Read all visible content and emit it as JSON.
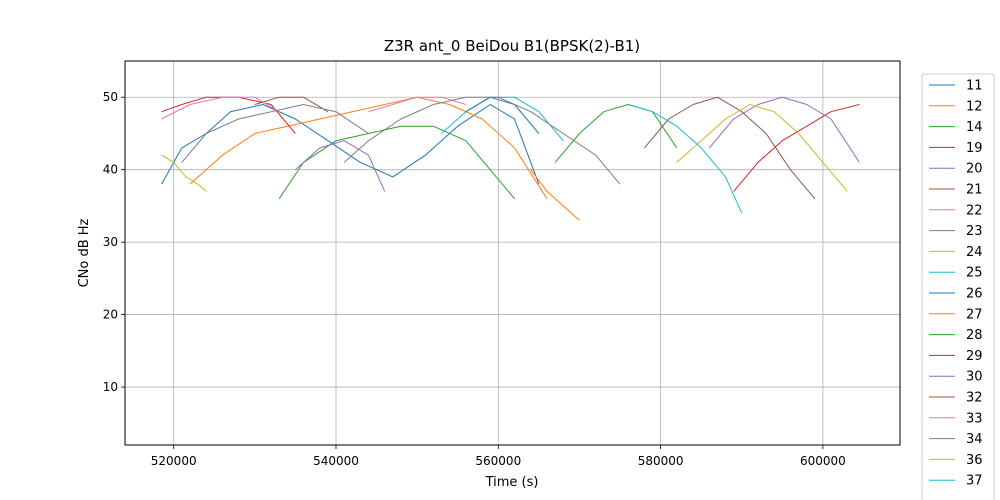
{
  "chart_data": {
    "type": "line",
    "title": "Z3R ant_0 BeiDou B1(BPSK(2)-B1)",
    "xlabel": "Time (s)",
    "ylabel": "CNo dB Hz",
    "xlim": [
      514000,
      609500
    ],
    "ylim": [
      2,
      55
    ],
    "xticks": [
      520000,
      540000,
      560000,
      580000,
      600000
    ],
    "yticks": [
      10,
      20,
      30,
      40,
      50
    ],
    "grid": true,
    "legend_placement": "right, outside plot",
    "series": [
      {
        "name": "11",
        "color": "#1f77b4",
        "x": [
          518500,
          521000,
          524000,
          527000,
          531000,
          535000,
          539000,
          543000,
          547000,
          551000,
          555000,
          559000,
          562000,
          565000
        ],
        "values": [
          38,
          43,
          45,
          48,
          49,
          47,
          44,
          41,
          39,
          42,
          46,
          49,
          47,
          38
        ]
      },
      {
        "name": "12",
        "color": "#ff7f0e",
        "x": [
          522000,
          526000,
          530000,
          534000,
          538000,
          542000,
          546000,
          550000,
          554000,
          558000,
          562000,
          566000
        ],
        "values": [
          38,
          42,
          45,
          46,
          47,
          48,
          49,
          50,
          49,
          47,
          43,
          36
        ]
      },
      {
        "name": "14",
        "color": "#2ca02c",
        "x": [
          533000,
          536000,
          540000,
          544000,
          548000,
          552000,
          556000,
          559000,
          562000
        ],
        "values": [
          36,
          41,
          44,
          45,
          46,
          46,
          44,
          40,
          36
        ]
      },
      {
        "name": "19",
        "color": "#d62728",
        "x": [
          518500,
          521000,
          524000,
          528000,
          532000,
          535000
        ],
        "values": [
          48,
          49,
          50,
          50,
          49,
          45
        ]
      },
      {
        "name": "20",
        "color": "#9467bd",
        "x": [
          535000,
          538000,
          541000,
          544000,
          546000
        ],
        "values": [
          40,
          43,
          44,
          42,
          37
        ]
      },
      {
        "name": "21",
        "color": "#8c564b",
        "x": [
          530000,
          533000,
          536000,
          539000
        ],
        "values": [
          49,
          50,
          50,
          48
        ]
      },
      {
        "name": "22",
        "color": "#e377c2",
        "x": [
          518500,
          522000,
          526000,
          530000,
          533000
        ],
        "values": [
          47,
          49,
          50,
          50,
          48
        ]
      },
      {
        "name": "23",
        "color": "#7f7f7f",
        "x": [
          521000,
          524000,
          528000,
          532000,
          536000,
          540000,
          544000
        ],
        "values": [
          41,
          45,
          47,
          48,
          49,
          48,
          45
        ]
      },
      {
        "name": "24",
        "color": "#bcbd22",
        "x": [
          518500,
          520000,
          521500,
          523000,
          524000
        ],
        "values": [
          42,
          41,
          39,
          38,
          37
        ]
      },
      {
        "name": "25",
        "color": "#17becf",
        "x": [
          553000,
          556000,
          559000,
          562000,
          565000,
          568000
        ],
        "values": [
          45,
          48,
          50,
          50,
          48,
          44
        ]
      },
      {
        "name": "26",
        "color": "#1f77b4",
        "x": [
          556000,
          559000,
          562000,
          565000
        ],
        "values": [
          48,
          50,
          49,
          45
        ]
      },
      {
        "name": "27",
        "color": "#ff7f0e",
        "x": [
          564000,
          566000,
          568000,
          570000
        ],
        "values": [
          40,
          37,
          35,
          33
        ]
      },
      {
        "name": "28",
        "color": "#2ca02c",
        "x": [
          567000,
          570000,
          573000,
          576000,
          579000,
          582000
        ],
        "values": [
          41,
          45,
          48,
          49,
          48,
          43
        ]
      },
      {
        "name": "29",
        "color": "#d62728",
        "x": [
          589000,
          592000,
          595000,
          598000,
          601000,
          604500
        ],
        "values": [
          37,
          41,
          44,
          46,
          48,
          49
        ]
      },
      {
        "name": "30",
        "color": "#9467bd",
        "x": [
          586000,
          589000,
          592000,
          595000,
          598000,
          601000,
          604500
        ],
        "values": [
          43,
          47,
          49,
          50,
          49,
          47,
          41
        ]
      },
      {
        "name": "32",
        "color": "#8c564b",
        "x": [
          578000,
          581000,
          584000,
          587000,
          590000,
          593000,
          596000,
          599000
        ],
        "values": [
          43,
          47,
          49,
          50,
          48,
          45,
          40,
          36
        ]
      },
      {
        "name": "33",
        "color": "#e377c2",
        "x": [
          544000,
          547000,
          550000,
          553000,
          556000
        ],
        "values": [
          48,
          49,
          50,
          50,
          49
        ]
      },
      {
        "name": "34",
        "color": "#7f7f7f",
        "x": [
          541000,
          544000,
          548000,
          552000,
          556000,
          560000,
          564000,
          568000,
          572000,
          575000
        ],
        "values": [
          41,
          44,
          47,
          49,
          50,
          50,
          48,
          45,
          42,
          38
        ]
      },
      {
        "name": "36",
        "color": "#bcbd22",
        "x": [
          582000,
          585000,
          588000,
          591000,
          594000,
          597000,
          600000,
          603000
        ],
        "values": [
          41,
          44,
          47,
          49,
          48,
          45,
          41,
          37
        ]
      },
      {
        "name": "37",
        "color": "#17becf",
        "x": [
          576000,
          579000,
          582000,
          585000,
          588000,
          590000
        ],
        "values": [
          49,
          48,
          46,
          43,
          39,
          34
        ]
      }
    ]
  }
}
